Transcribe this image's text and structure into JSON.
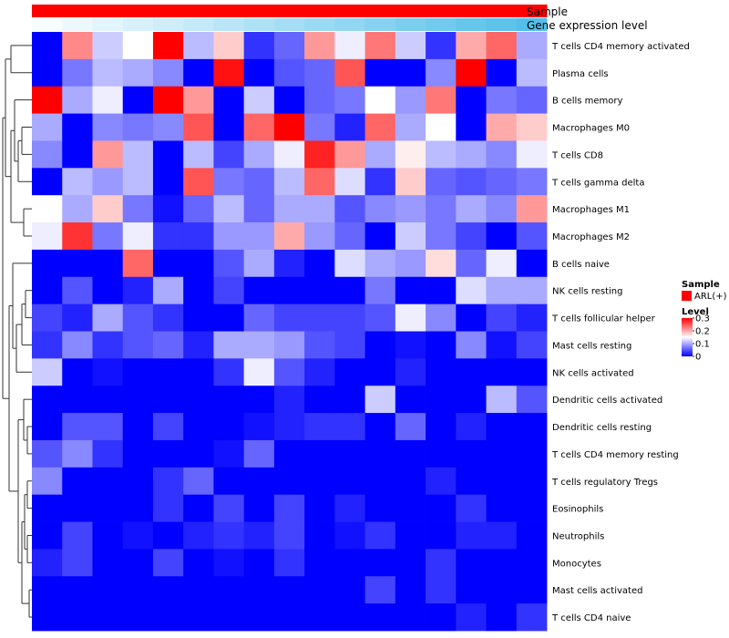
{
  "chart_data": {
    "type": "heatmap",
    "title": "",
    "row_labels": [
      "T cells CD4 memory activated",
      "Plasma cells",
      "B cells memory",
      "Macrophages M0",
      "T cells CD8",
      "T cells gamma delta",
      "Macrophages M1",
      "Macrophages M2",
      "B cells naive",
      "NK cells resting",
      "T cells follicular helper",
      "Mast cells resting",
      "NK cells activated",
      "Dendritic cells activated",
      "Dendritic cells resting",
      "T cells CD4 memory resting",
      "T cells regulatory  Tregs",
      "Eosinophils",
      "Neutrophils",
      "Monocytes",
      "Mast cells activated",
      "T cells CD4 naive"
    ],
    "values": [
      [
        0.0,
        0.22,
        0.12,
        0.15,
        0.3,
        0.11,
        0.18,
        0.03,
        0.06,
        0.21,
        0.14,
        0.23,
        0.12,
        0.03,
        0.2,
        0.24,
        0.1
      ],
      [
        0.0,
        0.07,
        0.11,
        0.1,
        0.08,
        0.0,
        0.29,
        0.0,
        0.05,
        0.06,
        0.25,
        0.0,
        0.0,
        0.08,
        0.3,
        0.0,
        0.11
      ],
      [
        0.3,
        0.1,
        0.14,
        0.0,
        0.3,
        0.21,
        0.0,
        0.12,
        0.0,
        0.06,
        0.07,
        0.15,
        0.09,
        0.23,
        0.0,
        0.07,
        0.06
      ],
      [
        0.1,
        0.0,
        0.08,
        0.07,
        0.08,
        0.25,
        0.0,
        0.24,
        0.3,
        0.07,
        0.02,
        0.24,
        0.1,
        0.15,
        0.0,
        0.2,
        0.18
      ],
      [
        0.08,
        0.0,
        0.21,
        0.11,
        0.0,
        0.11,
        0.04,
        0.1,
        0.14,
        0.28,
        0.21,
        0.1,
        0.16,
        0.11,
        0.1,
        0.08,
        0.14
      ],
      [
        0.0,
        0.11,
        0.09,
        0.11,
        0.0,
        0.25,
        0.07,
        0.06,
        0.11,
        0.24,
        0.13,
        0.03,
        0.18,
        0.06,
        0.05,
        0.06,
        0.07
      ],
      [
        0.15,
        0.1,
        0.18,
        0.07,
        0.01,
        0.06,
        0.11,
        0.06,
        0.1,
        0.1,
        0.05,
        0.08,
        0.09,
        0.07,
        0.1,
        0.08,
        0.21
      ],
      [
        0.14,
        0.27,
        0.07,
        0.14,
        0.03,
        0.03,
        0.09,
        0.09,
        0.2,
        0.09,
        0.06,
        0.0,
        0.12,
        0.07,
        0.04,
        0.0,
        0.05
      ],
      [
        0.0,
        0.0,
        0.0,
        0.24,
        0.0,
        0.0,
        0.05,
        0.1,
        0.02,
        0.0,
        0.13,
        0.1,
        0.09,
        0.17,
        0.06,
        0.14,
        0.0
      ],
      [
        0.0,
        0.05,
        0.0,
        0.02,
        0.1,
        0.0,
        0.04,
        0.0,
        0.0,
        0.0,
        0.0,
        0.07,
        0.0,
        0.0,
        0.13,
        0.1,
        0.1
      ],
      [
        0.04,
        0.02,
        0.1,
        0.05,
        0.03,
        0.0,
        0.0,
        0.06,
        0.04,
        0.04,
        0.04,
        0.05,
        0.14,
        0.08,
        0.0,
        0.04,
        0.02
      ],
      [
        0.03,
        0.08,
        0.03,
        0.05,
        0.06,
        0.02,
        0.1,
        0.1,
        0.09,
        0.05,
        0.04,
        0.0,
        0.01,
        0.0,
        0.08,
        0.01,
        0.04
      ],
      [
        0.12,
        0.0,
        0.01,
        0.0,
        0.0,
        0.0,
        0.03,
        0.14,
        0.05,
        0.02,
        0.0,
        0.0,
        0.02,
        0.0,
        0.0,
        0.0,
        0.0
      ],
      [
        0.0,
        0.0,
        0.0,
        0.0,
        0.0,
        0.0,
        0.0,
        0.0,
        0.02,
        0.0,
        0.0,
        0.12,
        0.0,
        0.0,
        0.0,
        0.11,
        0.05
      ],
      [
        0.0,
        0.05,
        0.05,
        0.0,
        0.04,
        0.0,
        0.0,
        0.01,
        0.02,
        0.03,
        0.03,
        0.0,
        0.06,
        0.0,
        0.02,
        0.0,
        0.0
      ],
      [
        0.05,
        0.08,
        0.03,
        0.0,
        0.0,
        0.0,
        0.01,
        0.06,
        0.0,
        0.0,
        0.0,
        0.0,
        0.0,
        0.0,
        0.0,
        0.0,
        0.0
      ],
      [
        0.08,
        0.0,
        0.0,
        0.0,
        0.03,
        0.06,
        0.0,
        0.0,
        0.0,
        0.0,
        0.0,
        0.0,
        0.0,
        0.02,
        0.0,
        0.0,
        0.0
      ],
      [
        0.0,
        0.0,
        0.0,
        0.0,
        0.03,
        0.0,
        0.04,
        0.0,
        0.04,
        0.0,
        0.02,
        0.0,
        0.0,
        0.0,
        0.03,
        0.0,
        0.0
      ],
      [
        0.0,
        0.04,
        0.0,
        0.01,
        0.0,
        0.02,
        0.03,
        0.02,
        0.04,
        0.0,
        0.01,
        0.03,
        0.0,
        0.0,
        0.02,
        0.02,
        0.0
      ],
      [
        0.02,
        0.04,
        0.0,
        0.0,
        0.04,
        0.0,
        0.01,
        0.0,
        0.03,
        0.0,
        0.0,
        0.0,
        0.0,
        0.03,
        0.0,
        0.0,
        0.0
      ],
      [
        0.0,
        0.0,
        0.0,
        0.0,
        0.0,
        0.0,
        0.0,
        0.0,
        0.0,
        0.0,
        0.0,
        0.04,
        0.0,
        0.03,
        0.0,
        0.0,
        0.0
      ],
      [
        0.0,
        0.0,
        0.0,
        0.0,
        0.0,
        0.0,
        0.0,
        0.0,
        0.0,
        0.0,
        0.0,
        0.0,
        0.0,
        0.0,
        0.02,
        0.0,
        0.03
      ]
    ],
    "color_scale": {
      "min": 0,
      "max": 0.3,
      "low_color": "#0000ff",
      "mid_color": "#ffffff",
      "high_color": "#ff0000",
      "mid_value": 0.15
    },
    "annotations": {
      "sample": {
        "label": "Sample",
        "color": "#ff0000"
      },
      "gene_expression": {
        "label": "Gene expression level",
        "values": [
          0.0,
          0.06,
          0.12,
          0.19,
          0.25,
          0.31,
          0.38,
          0.44,
          0.5,
          0.56,
          0.62,
          0.69,
          0.75,
          0.81,
          0.88,
          0.94,
          1.0
        ],
        "low_color": "#f7fcfe",
        "high_color": "#53bfea"
      }
    },
    "legend": {
      "sample_title": "Sample",
      "sample_entry": "ARL(+)",
      "level_title": "Level",
      "ticks": [
        0.3,
        0.2,
        0.1,
        0
      ],
      "tick_labels": [
        "0.3",
        "0.2",
        "0.1",
        "0"
      ],
      "placement": "right"
    },
    "dendrogram": "row"
  }
}
